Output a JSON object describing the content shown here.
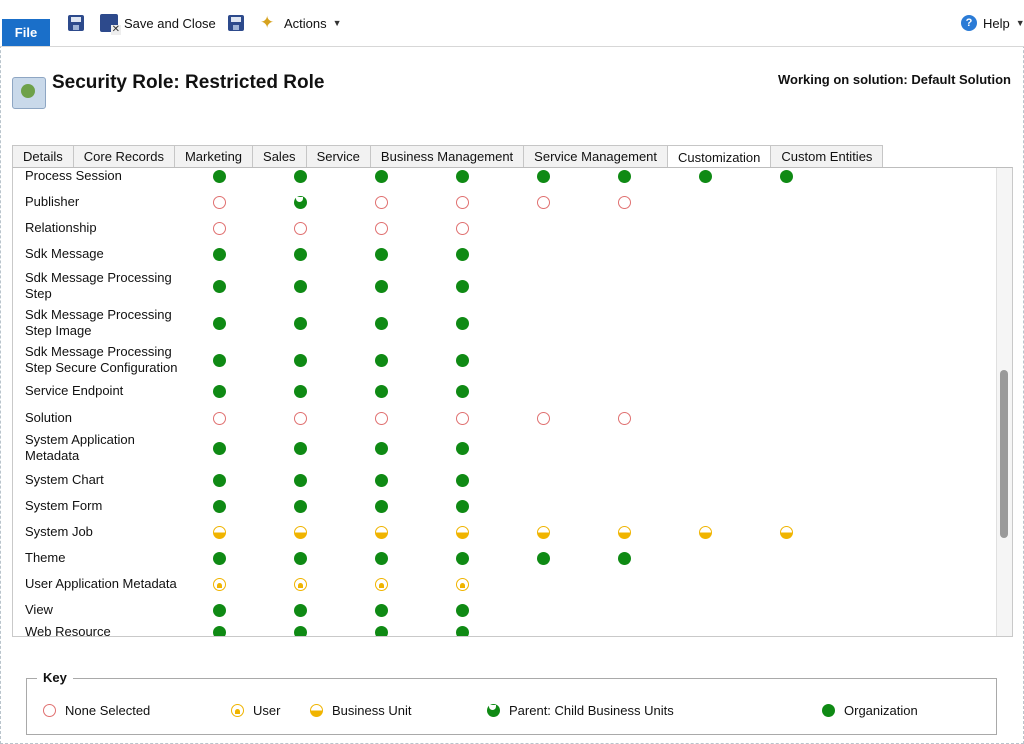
{
  "ribbon": {
    "file_label": "File",
    "save_close_label": "Save and Close",
    "actions_label": "Actions",
    "help_label": "Help"
  },
  "header": {
    "title": "Security Role: Restricted Role",
    "solution": "Working on solution: Default Solution"
  },
  "tabs": [
    "Details",
    "Core Records",
    "Marketing",
    "Sales",
    "Service",
    "Business Management",
    "Service Management",
    "Customization",
    "Custom Entities"
  ],
  "active_tab": "Customization",
  "rows": [
    {
      "label": "Process Session",
      "levels": [
        "org",
        "org",
        "org",
        "org",
        "org",
        "org",
        "org",
        "org"
      ]
    },
    {
      "label": "Publisher",
      "levels": [
        "none",
        "parent",
        "none",
        "none",
        "none",
        "none"
      ]
    },
    {
      "label": "Relationship",
      "levels": [
        "none",
        "none",
        "none",
        "none"
      ]
    },
    {
      "label": "Sdk Message",
      "levels": [
        "org",
        "org",
        "org",
        "org"
      ]
    },
    {
      "label": "Sdk Message Processing Step",
      "levels": [
        "org",
        "org",
        "org",
        "org"
      ]
    },
    {
      "label": "Sdk Message Processing Step Image",
      "levels": [
        "org",
        "org",
        "org",
        "org"
      ]
    },
    {
      "label": "Sdk Message Processing Step Secure Configuration",
      "levels": [
        "org",
        "org",
        "org",
        "org"
      ]
    },
    {
      "label": "Service Endpoint",
      "levels": [
        "org",
        "org",
        "org",
        "org"
      ]
    },
    {
      "label": "Solution",
      "levels": [
        "none",
        "none",
        "none",
        "none",
        "none",
        "none"
      ]
    },
    {
      "label": "System Application Metadata",
      "levels": [
        "org",
        "org",
        "org",
        "org"
      ]
    },
    {
      "label": "System Chart",
      "levels": [
        "org",
        "org",
        "org",
        "org"
      ]
    },
    {
      "label": "System Form",
      "levels": [
        "org",
        "org",
        "org",
        "org"
      ]
    },
    {
      "label": "System Job",
      "levels": [
        "bu",
        "bu",
        "bu",
        "bu",
        "bu",
        "bu",
        "bu",
        "bu"
      ]
    },
    {
      "label": "Theme",
      "levels": [
        "org",
        "org",
        "org",
        "org",
        "org",
        "org"
      ]
    },
    {
      "label": "User Application Metadata",
      "levels": [
        "user",
        "user",
        "user",
        "user"
      ]
    },
    {
      "label": "View",
      "levels": [
        "org",
        "org",
        "org",
        "org"
      ]
    },
    {
      "label": "Web Resource",
      "levels": [
        "org",
        "org",
        "org",
        "org"
      ]
    }
  ],
  "key": {
    "title": "Key",
    "items": [
      {
        "level": "none",
        "label": "None Selected"
      },
      {
        "level": "user",
        "label": "User"
      },
      {
        "level": "bu",
        "label": "Business Unit"
      },
      {
        "level": "parent",
        "label": "Parent: Child Business Units"
      },
      {
        "level": "org",
        "label": "Organization"
      }
    ]
  },
  "colors": {
    "organization": "#0f8a14",
    "none": "#e07070",
    "user_bu": "#f0b400",
    "file_button": "#1a6fc9"
  },
  "icons": [
    "save-icon",
    "save-close-icon",
    "actions-icon",
    "help-icon",
    "security-role-icon"
  ]
}
